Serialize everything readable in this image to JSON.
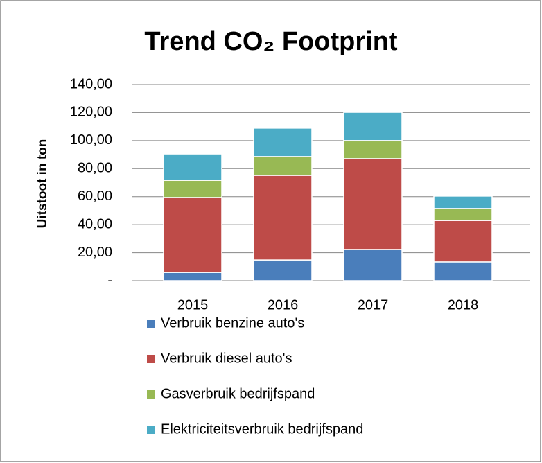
{
  "chart_data": {
    "type": "stacked-bar",
    "title": "Trend CO₂ Footprint",
    "y_label": "Uitstoot in ton",
    "categories": [
      "2015",
      "2016",
      "2017",
      "2018"
    ],
    "series": [
      {
        "name": "Verbruik benzine auto's",
        "color": "#4a7ebb",
        "values": [
          5.9,
          14.8,
          22.3,
          13.4
        ]
      },
      {
        "name": "Verbruik diesel auto's",
        "color": "#be4b48",
        "values": [
          53.5,
          60.4,
          64.8,
          29.6
        ]
      },
      {
        "name": "Gasverbruik bedrijfspand",
        "color": "#98b954",
        "values": [
          12.3,
          13.4,
          12.9,
          8.5
        ]
      },
      {
        "name": "Elektriciteitsverbruik bedrijfspand",
        "color": "#4bacc6",
        "values": [
          18.8,
          20.3,
          20.2,
          8.9
        ]
      }
    ],
    "ylim": [
      0,
      140
    ],
    "yticks": [
      {
        "value": 0,
        "label": "-"
      },
      {
        "value": 20,
        "label": "20,00"
      },
      {
        "value": 40,
        "label": "40,00"
      },
      {
        "value": 60,
        "label": "60,00"
      },
      {
        "value": 80,
        "label": "80,00"
      },
      {
        "value": 100,
        "label": "100,00"
      },
      {
        "value": 120,
        "label": "120,00"
      },
      {
        "value": 140,
        "label": "140,00"
      }
    ],
    "grid": true,
    "legend": "bottom"
  }
}
